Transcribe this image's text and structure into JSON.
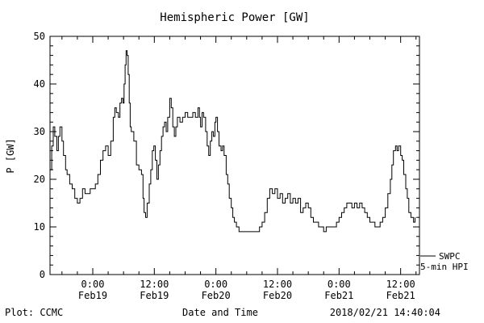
{
  "title": "Hemispheric Power [GW]",
  "axes": {
    "ylabel": "P [GW]",
    "xlabel": "Date and Time"
  },
  "legend": {
    "source": "SWPC",
    "product": "5-min HPI"
  },
  "footer": {
    "credit": "Plot: CCMC",
    "timestamp": "2018/02/21 14:40:04"
  },
  "colors": {
    "line": "#000000",
    "axis": "#000000",
    "background": "#ffffff"
  },
  "chart_data": {
    "type": "line",
    "title": "Hemispheric Power [GW]",
    "xlabel": "Date and Time",
    "ylabel": "P [GW]",
    "ylim": [
      0,
      50
    ],
    "yticks": [
      0,
      10,
      20,
      30,
      40,
      50
    ],
    "y_minor_step": 2,
    "x_unit": "hours since 2018-02-19 00:00",
    "xlim": [
      -8.33,
      63.67
    ],
    "x_minor_step": 3,
    "xticks": [
      {
        "t": 0,
        "time": "0:00",
        "date": "Feb19"
      },
      {
        "t": 12,
        "time": "12:00",
        "date": "Feb19"
      },
      {
        "t": 24,
        "time": "0:00",
        "date": "Feb20"
      },
      {
        "t": 36,
        "time": "12:00",
        "date": "Feb20"
      },
      {
        "t": 48,
        "time": "0:00",
        "date": "Feb21"
      },
      {
        "t": 60,
        "time": "12:00",
        "date": "Feb21"
      }
    ],
    "grid": false,
    "legend_position": "right-outside-bottom",
    "series": [
      {
        "name": "SWPC 5-min HPI",
        "step": true,
        "points": [
          [
            -8.3,
            22
          ],
          [
            -8.0,
            27
          ],
          [
            -7.7,
            31
          ],
          [
            -7.4,
            29
          ],
          [
            -7.0,
            26
          ],
          [
            -6.7,
            29
          ],
          [
            -6.4,
            31
          ],
          [
            -6.0,
            28
          ],
          [
            -5.7,
            25
          ],
          [
            -5.3,
            22
          ],
          [
            -5.0,
            21
          ],
          [
            -4.5,
            19
          ],
          [
            -4.0,
            18
          ],
          [
            -3.5,
            16
          ],
          [
            -3.0,
            15
          ],
          [
            -2.5,
            16
          ],
          [
            -2.0,
            18
          ],
          [
            -1.5,
            17
          ],
          [
            -1.0,
            17
          ],
          [
            -0.5,
            18
          ],
          [
            0.0,
            18
          ],
          [
            0.5,
            19
          ],
          [
            1.0,
            21
          ],
          [
            1.5,
            24
          ],
          [
            2.0,
            26
          ],
          [
            2.5,
            27
          ],
          [
            3.0,
            25
          ],
          [
            3.5,
            28
          ],
          [
            4.0,
            33
          ],
          [
            4.3,
            35
          ],
          [
            4.6,
            34
          ],
          [
            5.0,
            33
          ],
          [
            5.3,
            36
          ],
          [
            5.6,
            37
          ],
          [
            5.9,
            36
          ],
          [
            6.1,
            40
          ],
          [
            6.3,
            44
          ],
          [
            6.5,
            47
          ],
          [
            6.7,
            46
          ],
          [
            6.9,
            42
          ],
          [
            7.1,
            36
          ],
          [
            7.3,
            31
          ],
          [
            7.5,
            30
          ],
          [
            8.0,
            28
          ],
          [
            8.5,
            23
          ],
          [
            9.0,
            22
          ],
          [
            9.5,
            21
          ],
          [
            9.8,
            16
          ],
          [
            10.0,
            13
          ],
          [
            10.3,
            12
          ],
          [
            10.6,
            15
          ],
          [
            11.0,
            19
          ],
          [
            11.3,
            22
          ],
          [
            11.6,
            26
          ],
          [
            11.9,
            27
          ],
          [
            12.2,
            24
          ],
          [
            12.5,
            20
          ],
          [
            12.8,
            23
          ],
          [
            13.1,
            26
          ],
          [
            13.4,
            29
          ],
          [
            13.7,
            31
          ],
          [
            14.0,
            32
          ],
          [
            14.3,
            30
          ],
          [
            14.6,
            33
          ],
          [
            15.0,
            37
          ],
          [
            15.3,
            35
          ],
          [
            15.6,
            31
          ],
          [
            15.9,
            29
          ],
          [
            16.2,
            31
          ],
          [
            16.5,
            33
          ],
          [
            17.0,
            32
          ],
          [
            17.5,
            33
          ],
          [
            18.0,
            34
          ],
          [
            18.5,
            33
          ],
          [
            19.0,
            33
          ],
          [
            19.5,
            34
          ],
          [
            20.0,
            33
          ],
          [
            20.5,
            35
          ],
          [
            20.8,
            33
          ],
          [
            21.0,
            31
          ],
          [
            21.3,
            34
          ],
          [
            21.6,
            33
          ],
          [
            22.0,
            30
          ],
          [
            22.3,
            27
          ],
          [
            22.6,
            25
          ],
          [
            22.9,
            28
          ],
          [
            23.2,
            30
          ],
          [
            23.5,
            29
          ],
          [
            23.8,
            32
          ],
          [
            24.0,
            33
          ],
          [
            24.3,
            30
          ],
          [
            24.6,
            27
          ],
          [
            25.0,
            26
          ],
          [
            25.3,
            27
          ],
          [
            25.6,
            25
          ],
          [
            26.0,
            21
          ],
          [
            26.3,
            19
          ],
          [
            26.6,
            16
          ],
          [
            27.0,
            14
          ],
          [
            27.3,
            12
          ],
          [
            27.6,
            11
          ],
          [
            28.0,
            10
          ],
          [
            28.5,
            9
          ],
          [
            29.0,
            9
          ],
          [
            30.0,
            9
          ],
          [
            31.0,
            9
          ],
          [
            32.0,
            9
          ],
          [
            32.5,
            10
          ],
          [
            33.0,
            11
          ],
          [
            33.5,
            13
          ],
          [
            34.0,
            16
          ],
          [
            34.5,
            18
          ],
          [
            35.0,
            17
          ],
          [
            35.5,
            18
          ],
          [
            36.0,
            16
          ],
          [
            36.5,
            17
          ],
          [
            37.0,
            15
          ],
          [
            37.5,
            16
          ],
          [
            38.0,
            17
          ],
          [
            38.5,
            15
          ],
          [
            39.0,
            16
          ],
          [
            39.5,
            15
          ],
          [
            40.0,
            16
          ],
          [
            40.5,
            13
          ],
          [
            41.0,
            14
          ],
          [
            41.5,
            15
          ],
          [
            42.0,
            14
          ],
          [
            42.5,
            12
          ],
          [
            43.0,
            11
          ],
          [
            43.5,
            11
          ],
          [
            44.0,
            10
          ],
          [
            44.5,
            10
          ],
          [
            45.0,
            9
          ],
          [
            45.5,
            10
          ],
          [
            46.0,
            10
          ],
          [
            47.0,
            10
          ],
          [
            47.5,
            11
          ],
          [
            48.0,
            12
          ],
          [
            48.5,
            13
          ],
          [
            49.0,
            14
          ],
          [
            49.5,
            15
          ],
          [
            50.0,
            15
          ],
          [
            50.5,
            14
          ],
          [
            51.0,
            15
          ],
          [
            51.5,
            14
          ],
          [
            52.0,
            15
          ],
          [
            52.5,
            14
          ],
          [
            53.0,
            13
          ],
          [
            53.5,
            12
          ],
          [
            54.0,
            11
          ],
          [
            54.5,
            11
          ],
          [
            55.0,
            10
          ],
          [
            55.5,
            10
          ],
          [
            56.0,
            11
          ],
          [
            56.5,
            12
          ],
          [
            57.0,
            14
          ],
          [
            57.5,
            17
          ],
          [
            58.0,
            20
          ],
          [
            58.3,
            23
          ],
          [
            58.6,
            26
          ],
          [
            59.0,
            27
          ],
          [
            59.3,
            26
          ],
          [
            59.6,
            27
          ],
          [
            60.0,
            25
          ],
          [
            60.3,
            24
          ],
          [
            60.6,
            21
          ],
          [
            61.0,
            18
          ],
          [
            61.3,
            16
          ],
          [
            61.6,
            13
          ],
          [
            62.0,
            12
          ],
          [
            62.5,
            11
          ],
          [
            62.8,
            12
          ]
        ]
      }
    ]
  }
}
